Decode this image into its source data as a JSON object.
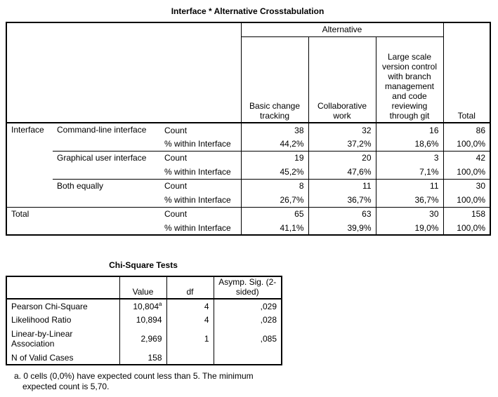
{
  "crosstab": {
    "title": "Interface * Alternative Crosstabulation",
    "col_group_label": "Alternative",
    "columns": [
      "Basic change tracking",
      "Collaborative work",
      "Large scale version control with branch management and code reviewing through git",
      "Total"
    ],
    "row_var": "Interface",
    "total_label": "Total",
    "stat_labels": [
      "Count",
      "% within Interface"
    ],
    "groups": [
      {
        "label": "Command-line interface",
        "count": [
          "38",
          "32",
          "16",
          "86"
        ],
        "pct": [
          "44,2%",
          "37,2%",
          "18,6%",
          "100,0%"
        ]
      },
      {
        "label": "Graphical user interface",
        "count": [
          "19",
          "20",
          "3",
          "42"
        ],
        "pct": [
          "45,2%",
          "47,6%",
          "7,1%",
          "100,0%"
        ]
      },
      {
        "label": "Both equally",
        "count": [
          "8",
          "11",
          "11",
          "30"
        ],
        "pct": [
          "26,7%",
          "36,7%",
          "36,7%",
          "100,0%"
        ]
      }
    ],
    "total": {
      "count": [
        "65",
        "63",
        "30",
        "158"
      ],
      "pct": [
        "41,1%",
        "39,9%",
        "19,0%",
        "100,0%"
      ]
    }
  },
  "chi": {
    "title": "Chi-Square Tests",
    "headers": [
      "Value",
      "df",
      "Asymp. Sig. (2-sided)"
    ],
    "rows": [
      {
        "label": "Pearson Chi-Square",
        "value": "10,804",
        "sup": "a",
        "df": "4",
        "sig": ",029"
      },
      {
        "label": "Likelihood Ratio",
        "value": "10,894",
        "df": "4",
        "sig": ",028"
      },
      {
        "label": "Linear-by-Linear Association",
        "value": "2,969",
        "df": "1",
        "sig": ",085"
      },
      {
        "label": "N of Valid Cases",
        "value": "158",
        "df": "",
        "sig": ""
      }
    ],
    "footnote": "a. 0 cells (0,0%) have expected count less than 5. The minimum expected count is 5,70."
  }
}
